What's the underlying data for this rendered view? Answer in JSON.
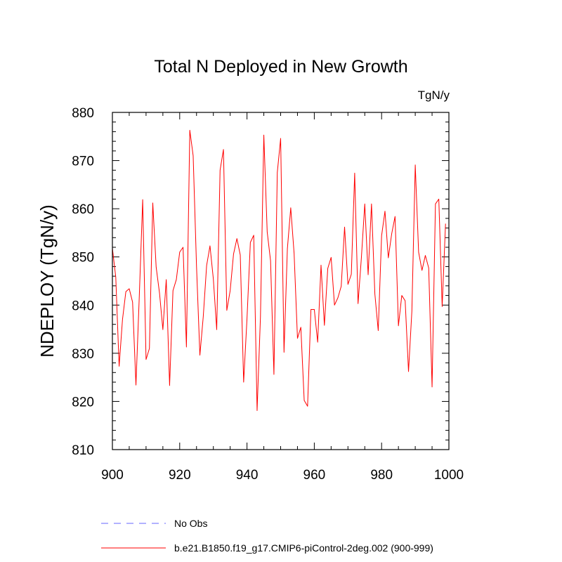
{
  "chart_data": {
    "type": "line",
    "title": "Total N Deployed in New Growth",
    "units_label": "TgN/y",
    "ylabel": "NDEPLOY  (TgN/y)",
    "xlabel": "",
    "xlim": [
      900,
      1000
    ],
    "ylim": [
      810,
      880
    ],
    "x_ticks": [
      "900",
      "920",
      "940",
      "960",
      "980",
      "1000"
    ],
    "y_ticks": [
      "810",
      "820",
      "830",
      "840",
      "850",
      "860",
      "870",
      "880"
    ],
    "grid": false,
    "legend_position": "bottom-left",
    "series": [
      {
        "name": "b.e21.B1850.f19_g17.CMIP6-piControl-2deg.002 (900-999)",
        "color": "#ff0000",
        "style": "solid",
        "x": [
          900,
          901,
          902,
          903,
          904,
          905,
          906,
          907,
          908,
          909,
          910,
          911,
          912,
          913,
          914,
          915,
          916,
          917,
          918,
          919,
          920,
          921,
          922,
          923,
          924,
          925,
          926,
          927,
          928,
          929,
          930,
          931,
          932,
          933,
          934,
          935,
          936,
          937,
          938,
          939,
          940,
          941,
          942,
          943,
          944,
          945,
          946,
          947,
          948,
          949,
          950,
          951,
          952,
          953,
          954,
          955,
          956,
          957,
          958,
          959,
          960,
          961,
          962,
          963,
          964,
          965,
          966,
          967,
          968,
          969,
          970,
          971,
          972,
          973,
          974,
          975,
          976,
          977,
          978,
          979,
          980,
          981,
          982,
          983,
          984,
          985,
          986,
          987,
          988,
          989,
          990,
          991,
          992,
          993,
          994,
          995,
          996,
          997,
          998,
          999
        ],
        "values": [
          851.8,
          845.8,
          827.3,
          837,
          842.8,
          843.4,
          840.6,
          823.4,
          842,
          861.9,
          828.7,
          831,
          861.2,
          847.9,
          842.5,
          834.9,
          845.3,
          823.3,
          843,
          845.3,
          851,
          852,
          831.3,
          876.3,
          871,
          848,
          829.6,
          837.6,
          848.2,
          852.3,
          845.4,
          834.9,
          868,
          872.3,
          838.9,
          843,
          850.6,
          853.8,
          850.4,
          824,
          837.2,
          853,
          854.5,
          818.1,
          837.6,
          875.3,
          855.2,
          849.2,
          825.6,
          867.5,
          874.6,
          830.2,
          851.7,
          860.2,
          850.7,
          833.1,
          835.4,
          820.2,
          819,
          839.1,
          839.1,
          832.3,
          848.3,
          835.8,
          847.6,
          849.9,
          840,
          841.5,
          843.9,
          856.2,
          844.3,
          846.4,
          867.4,
          840.3,
          849.9,
          861,
          846.3,
          861,
          842.3,
          834.7,
          854.4,
          859.5,
          849.8,
          854.8,
          858.4,
          835.7,
          842,
          840.9,
          826.2,
          838.8,
          869.1,
          851,
          847.2,
          850.3,
          847.7,
          823,
          861,
          862,
          839.7,
          856.9
        ]
      },
      {
        "name": "No Obs",
        "color": "#6666ff",
        "style": "dashed",
        "x": [],
        "values": []
      }
    ]
  }
}
